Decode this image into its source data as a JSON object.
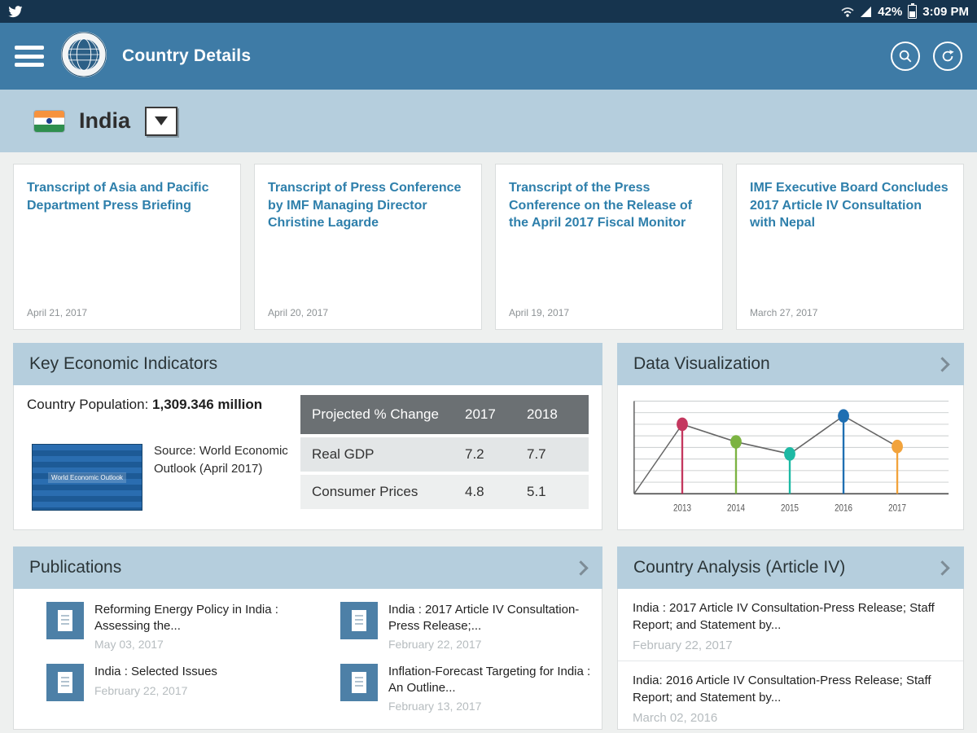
{
  "status_bar": {
    "time": "3:09 PM",
    "battery_percent": "42%"
  },
  "app_bar": {
    "title": "Country Details"
  },
  "country_selector": {
    "country": "India"
  },
  "news_cards": [
    {
      "title": "Transcript of Asia and Pacific Department Press Briefing",
      "date": "April 21, 2017"
    },
    {
      "title": "Transcript of Press Conference by IMF Managing Director Christine Lagarde",
      "date": "April 20, 2017"
    },
    {
      "title": "Transcript of the Press Conference on the Release of the April 2017 Fiscal Monitor",
      "date": "April 19, 2017"
    },
    {
      "title": "IMF Executive Board Concludes 2017 Article IV Consultation with Nepal",
      "date": "March 27, 2017"
    }
  ],
  "panels": {
    "key_indicators": {
      "title": "Key Economic Indicators",
      "population_label": "Country Population: ",
      "population_value": "1,309.346 million",
      "thumb_caption": "World Economic Outlook",
      "source": "Source: World Economic Outlook (April 2017)",
      "table": {
        "col_label": "Projected % Change",
        "col_2017": "2017",
        "col_2018": "2018",
        "rows": [
          {
            "label": "Real GDP",
            "v2017": "7.2",
            "v2018": "7.7"
          },
          {
            "label": "Consumer Prices",
            "v2017": "4.8",
            "v2018": "5.1"
          }
        ]
      }
    },
    "data_visualization": {
      "title": "Data Visualization"
    },
    "publications": {
      "title": "Publications",
      "items": [
        {
          "title": "Reforming Energy Policy in India : Assessing the...",
          "date": "May 03, 2017"
        },
        {
          "title": "India : 2017 Article IV Consultation-Press Release;...",
          "date": "February 22, 2017"
        },
        {
          "title": "India : Selected Issues",
          "date": "February 22, 2017"
        },
        {
          "title": "Inflation-Forecast Targeting for India : An Outline...",
          "date": "February 13, 2017"
        }
      ]
    },
    "country_analysis": {
      "title": "Country Analysis (Article IV)",
      "items": [
        {
          "title": "India : 2017 Article IV Consultation-Press Release; Staff Report; and Statement by...",
          "date": "February 22, 2017"
        },
        {
          "title": "India: 2016 Article IV Consultation-Press Release; Staff Report; and Statement by...",
          "date": "March 02, 2016"
        }
      ]
    }
  },
  "chart_data": {
    "type": "line",
    "title": "Data Visualization",
    "x": [
      "2013",
      "2014",
      "2015",
      "2016",
      "2017"
    ],
    "values": [
      7.5,
      5.6,
      4.3,
      8.4,
      5.1
    ],
    "ylim": [
      0,
      10
    ],
    "xlabel": "",
    "ylabel": "",
    "grid": true,
    "legend": "none",
    "point_colors": [
      "#c4385f",
      "#7cb342",
      "#1db9a4",
      "#1f6fb2",
      "#f2a33c"
    ],
    "line_color": "#666666"
  },
  "colors": {
    "statusbar": "#16344e",
    "appbar": "#3e7ba6",
    "panel_header": "#b5cedd",
    "card_title": "#2e7fab",
    "table_header": "#6b7073",
    "doc_tile": "#4d80a7",
    "page_bg": "#eef0ef"
  }
}
